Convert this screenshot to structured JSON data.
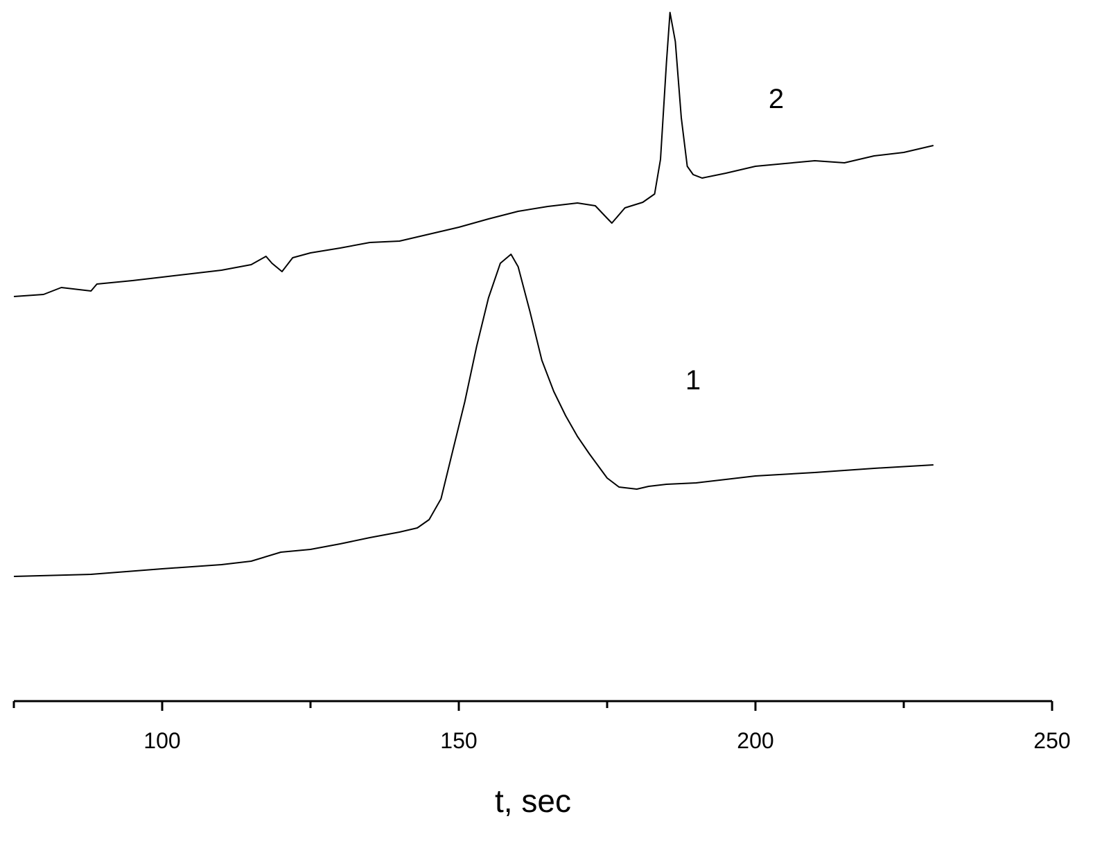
{
  "chart_data": {
    "type": "line",
    "xlabel": "t, sec",
    "xlim": [
      75,
      250
    ],
    "xticks": [
      100,
      150,
      200,
      250
    ],
    "xminor_ticks": [
      75,
      125,
      175,
      225
    ],
    "ylim": [
      0,
      100
    ],
    "series": [
      {
        "name": "1",
        "color": "#000000",
        "x": [
          75,
          88,
          100,
          110,
          115,
          120,
          125,
          130,
          135,
          140,
          143,
          145,
          147,
          149,
          151,
          153,
          155,
          157,
          158.8,
          160,
          162,
          164,
          166,
          168,
          170,
          172,
          175,
          177,
          180,
          182,
          185,
          190,
          195,
          200,
          210,
          220,
          230
        ],
        "values": [
          17.8,
          18.1,
          18.9,
          19.5,
          20.0,
          21.3,
          21.7,
          22.5,
          23.4,
          24.2,
          24.8,
          26.0,
          29.0,
          36.0,
          43.0,
          51.0,
          58.0,
          63.0,
          64.3,
          62.5,
          56.0,
          49.0,
          44.5,
          41.0,
          38.0,
          35.5,
          32.0,
          30.7,
          30.4,
          30.8,
          31.1,
          31.3,
          31.8,
          32.3,
          32.8,
          33.4,
          33.9
        ]
      },
      {
        "name": "2",
        "color": "#000000",
        "x": [
          75,
          80,
          83,
          88,
          89,
          95,
          100,
          105,
          110,
          115,
          117.5,
          118.5,
          120.2,
          122,
          125,
          130,
          135,
          140,
          145,
          150,
          155,
          160,
          165,
          170,
          173,
          175,
          175.8,
          178,
          181,
          183,
          184,
          185,
          185.6,
          186.5,
          187.5,
          188.5,
          189.5,
          191,
          195,
          200,
          205,
          210,
          215,
          220,
          225,
          230
        ],
        "values": [
          58.2,
          58.5,
          59.5,
          59.0,
          60.0,
          60.5,
          61.0,
          61.5,
          62.0,
          62.8,
          64.0,
          63.0,
          61.8,
          63.8,
          64.5,
          65.2,
          66.0,
          66.2,
          67.2,
          68.2,
          69.4,
          70.5,
          71.2,
          71.7,
          71.3,
          69.5,
          68.8,
          71.0,
          71.8,
          73.0,
          78.0,
          92.0,
          99.2,
          95.0,
          84.0,
          77.0,
          75.8,
          75.3,
          76.0,
          77.0,
          77.4,
          77.8,
          77.5,
          78.5,
          79.0,
          80.0
        ]
      }
    ]
  }
}
